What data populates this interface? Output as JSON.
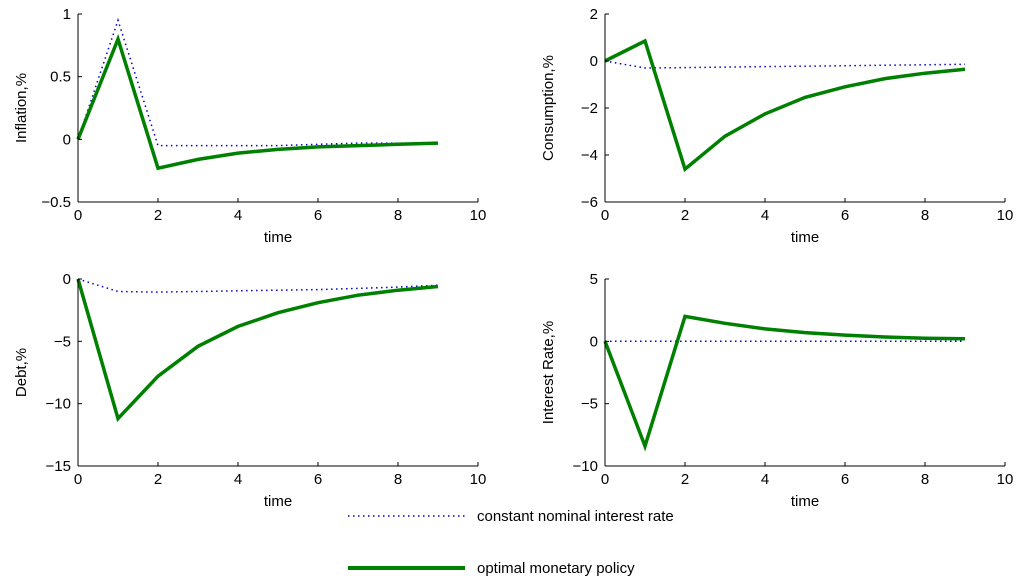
{
  "colors": {
    "dotted": "#0000cc",
    "solid": "#008000",
    "axis": "#000000"
  },
  "legend": {
    "items": [
      {
        "label": "constant nominal interest rate",
        "style": "dotted"
      },
      {
        "label": "optimal monetary policy",
        "style": "solid"
      }
    ]
  },
  "chart_data": [
    {
      "type": "line",
      "xlabel": "time",
      "ylabel": "Inflation,%",
      "xlim": [
        0,
        10
      ],
      "ylim": [
        -0.5,
        1
      ],
      "xticks": [
        "0",
        "2",
        "4",
        "6",
        "8",
        "10"
      ],
      "yticks": [
        "−0.5",
        "0",
        "0.5",
        "1"
      ],
      "ytick_values": [
        -0.5,
        0,
        0.5,
        1
      ],
      "series": [
        {
          "name": "constant nominal interest rate",
          "style": "dotted",
          "x": [
            0,
            1,
            2,
            3,
            4,
            5,
            6,
            7,
            8,
            9
          ],
          "values": [
            0,
            0.95,
            -0.05,
            -0.05,
            -0.05,
            -0.05,
            -0.04,
            -0.03,
            -0.03,
            -0.03
          ]
        },
        {
          "name": "optimal monetary policy",
          "style": "solid",
          "x": [
            0,
            1,
            2,
            3,
            4,
            5,
            6,
            7,
            8,
            9
          ],
          "values": [
            0,
            0.8,
            -0.23,
            -0.16,
            -0.11,
            -0.08,
            -0.06,
            -0.05,
            -0.04,
            -0.03
          ]
        }
      ]
    },
    {
      "type": "line",
      "xlabel": "time",
      "ylabel": "Consumption,%",
      "xlim": [
        0,
        10
      ],
      "ylim": [
        -6,
        2
      ],
      "xticks": [
        "0",
        "2",
        "4",
        "6",
        "8",
        "10"
      ],
      "yticks": [
        "−6",
        "−4",
        "−2",
        "0",
        "2"
      ],
      "ytick_values": [
        -6,
        -4,
        -2,
        0,
        2
      ],
      "series": [
        {
          "name": "constant nominal interest rate",
          "style": "dotted",
          "x": [
            0,
            1,
            2,
            3,
            4,
            5,
            6,
            7,
            8,
            9
          ],
          "values": [
            0,
            -0.3,
            -0.28,
            -0.26,
            -0.24,
            -0.22,
            -0.2,
            -0.18,
            -0.16,
            -0.14
          ]
        },
        {
          "name": "optimal monetary policy",
          "style": "solid",
          "x": [
            0,
            1,
            2,
            3,
            4,
            5,
            6,
            7,
            8,
            9
          ],
          "values": [
            0,
            0.85,
            -4.6,
            -3.2,
            -2.25,
            -1.55,
            -1.1,
            -0.75,
            -0.52,
            -0.35
          ]
        }
      ]
    },
    {
      "type": "line",
      "xlabel": "time",
      "ylabel": "Debt,%",
      "xlim": [
        0,
        10
      ],
      "ylim": [
        -15,
        0
      ],
      "xticks": [
        "0",
        "2",
        "4",
        "6",
        "8",
        "10"
      ],
      "yticks": [
        "−15",
        "−10",
        "−5",
        "0"
      ],
      "ytick_values": [
        -15,
        -10,
        -5,
        0
      ],
      "series": [
        {
          "name": "constant nominal interest rate",
          "style": "dotted",
          "x": [
            0,
            1,
            2,
            3,
            4,
            5,
            6,
            7,
            8,
            9
          ],
          "values": [
            0,
            -1.0,
            -1.05,
            -1.0,
            -0.95,
            -0.9,
            -0.85,
            -0.75,
            -0.65,
            -0.5
          ]
        },
        {
          "name": "optimal monetary policy",
          "style": "solid",
          "x": [
            0,
            1,
            2,
            3,
            4,
            5,
            6,
            7,
            8,
            9
          ],
          "values": [
            0,
            -11.2,
            -7.8,
            -5.4,
            -3.8,
            -2.7,
            -1.9,
            -1.3,
            -0.9,
            -0.6
          ]
        }
      ]
    },
    {
      "type": "line",
      "xlabel": "time",
      "ylabel": "Interest Rate,%",
      "xlim": [
        0,
        10
      ],
      "ylim": [
        -10,
        5
      ],
      "xticks": [
        "0",
        "2",
        "4",
        "6",
        "8",
        "10"
      ],
      "yticks": [
        "−10",
        "−5",
        "0",
        "5"
      ],
      "ytick_values": [
        -10,
        -5,
        0,
        5
      ],
      "series": [
        {
          "name": "constant nominal interest rate",
          "style": "dotted",
          "x": [
            0,
            1,
            2,
            3,
            4,
            5,
            6,
            7,
            8,
            9
          ],
          "values": [
            0,
            0,
            0,
            0,
            0,
            0,
            0,
            0,
            0,
            0
          ]
        },
        {
          "name": "optimal monetary policy",
          "style": "solid",
          "x": [
            0,
            1,
            2,
            3,
            4,
            5,
            6,
            7,
            8,
            9
          ],
          "values": [
            0,
            -8.4,
            2.0,
            1.45,
            1.0,
            0.7,
            0.5,
            0.35,
            0.25,
            0.2
          ]
        }
      ]
    }
  ]
}
